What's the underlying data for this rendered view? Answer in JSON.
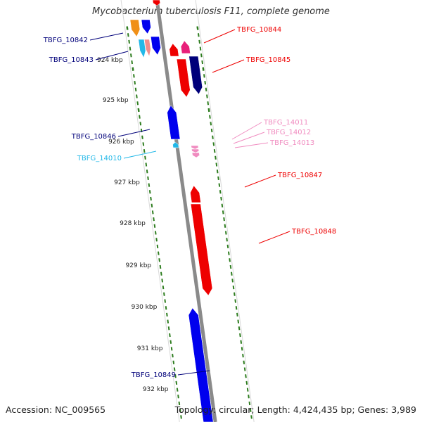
{
  "title": "Mycobacterium tuberculosis F11, complete genome",
  "footer": {
    "accession": "Accession: NC_009565",
    "stats": "Topology: circular; Length: 4,424,435 bp; Genes: 3,989"
  },
  "colors": {
    "backbone": "#8a8a8a",
    "tick": "#2e7d1f",
    "dark_blue": "#00007a",
    "blue": "#0000ee",
    "red": "#ee0000",
    "cyan": "#22b8e8",
    "pink": "#f08cc0",
    "orange": "#f09018",
    "salmon": "#f08c8c",
    "magenta": "#e8207a"
  },
  "ruler_labels": [
    "924 kbp",
    "925 kbp",
    "926 kbp",
    "927 kbp",
    "928 kbp",
    "929 kbp",
    "930 kbp",
    "931 kbp",
    "932 kbp"
  ],
  "gene_labels": [
    {
      "text": "TBFG_10842",
      "color_key": "dark_blue"
    },
    {
      "text": "TBFG_10843",
      "color_key": "dark_blue"
    },
    {
      "text": "TBFG_10844",
      "color_key": "red"
    },
    {
      "text": "TBFG_10845",
      "color_key": "red"
    },
    {
      "text": "TBFG_14011",
      "color_key": "pink"
    },
    {
      "text": "TBFG_14012",
      "color_key": "pink"
    },
    {
      "text": "TBFG_14013",
      "color_key": "pink"
    },
    {
      "text": "TBFG_10846",
      "color_key": "dark_blue"
    },
    {
      "text": "TBFG_14010",
      "color_key": "cyan"
    },
    {
      "text": "TBFG_10847",
      "color_key": "red"
    },
    {
      "text": "TBFG_10848",
      "color_key": "red"
    },
    {
      "text": "TBFG_10849",
      "color_key": "dark_blue"
    }
  ],
  "genes": [
    {
      "color_key": "orange"
    },
    {
      "color_key": "blue"
    },
    {
      "color_key": "red"
    },
    {
      "color_key": "cyan"
    },
    {
      "color_key": "salmon"
    },
    {
      "color_key": "blue"
    },
    {
      "color_key": "red"
    },
    {
      "color_key": "magenta"
    },
    {
      "color_key": "red"
    },
    {
      "color_key": "dark_blue"
    },
    {
      "color_key": "blue"
    },
    {
      "color_key": "cyan"
    },
    {
      "color_key": "pink"
    },
    {
      "color_key": "red"
    },
    {
      "color_key": "red"
    },
    {
      "color_key": "blue"
    }
  ]
}
